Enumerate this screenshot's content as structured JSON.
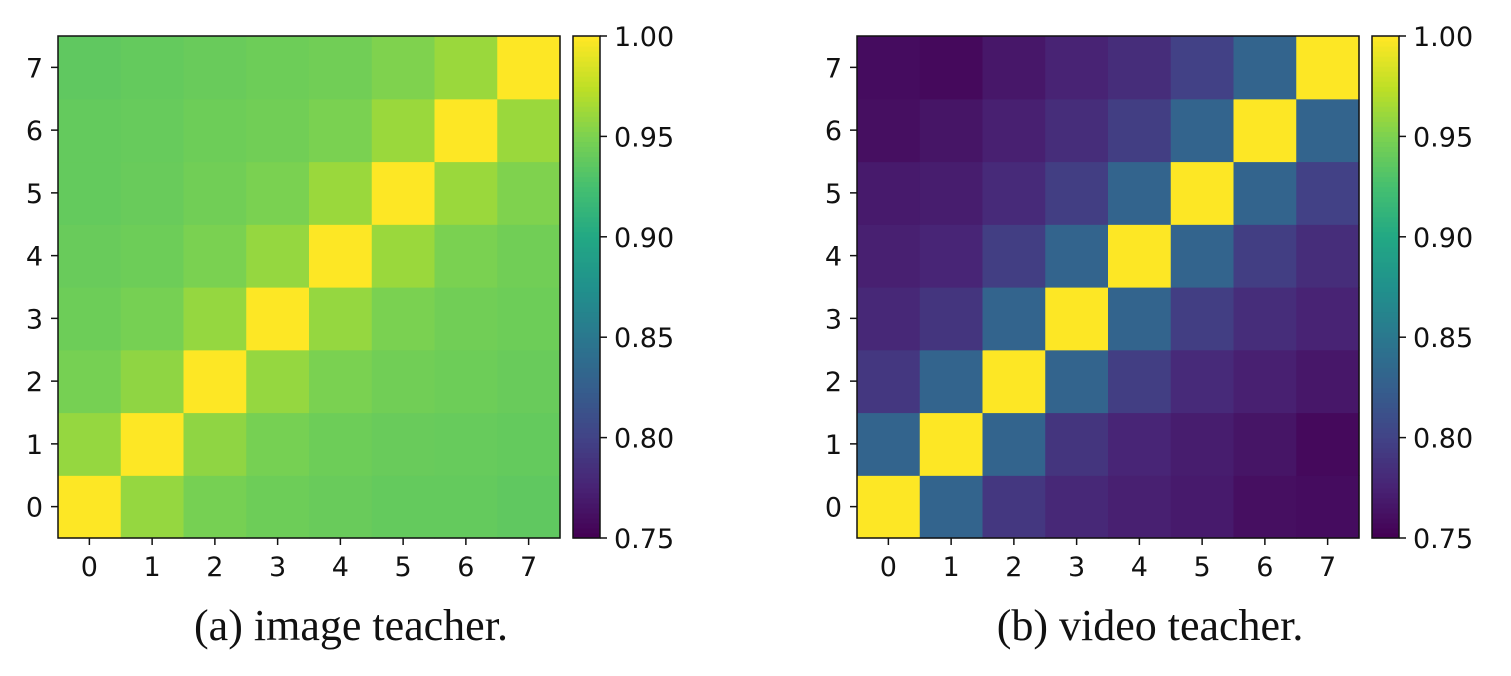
{
  "chart_data": [
    {
      "type": "heatmap",
      "caption": "(a) image teacher.",
      "x_ticks": [
        "0",
        "1",
        "2",
        "3",
        "4",
        "5",
        "6",
        "7"
      ],
      "y_ticks": [
        "0",
        "1",
        "2",
        "3",
        "4",
        "5",
        "6",
        "7"
      ],
      "colorbar": {
        "min": 0.75,
        "max": 1.0,
        "ticks": [
          "0.75",
          "0.80",
          "0.85",
          "0.90",
          "0.95",
          "1.00"
        ]
      },
      "matrix": [
        [
          1.0,
          0.96,
          0.948,
          0.944,
          0.942,
          0.94,
          0.94,
          0.938
        ],
        [
          0.96,
          1.0,
          0.958,
          0.948,
          0.944,
          0.942,
          0.941,
          0.94
        ],
        [
          0.948,
          0.958,
          1.0,
          0.96,
          0.95,
          0.946,
          0.944,
          0.942
        ],
        [
          0.944,
          0.948,
          0.96,
          1.0,
          0.96,
          0.95,
          0.946,
          0.944
        ],
        [
          0.942,
          0.944,
          0.95,
          0.96,
          1.0,
          0.962,
          0.95,
          0.946
        ],
        [
          0.94,
          0.942,
          0.946,
          0.95,
          0.962,
          1.0,
          0.962,
          0.952
        ],
        [
          0.94,
          0.941,
          0.944,
          0.946,
          0.95,
          0.962,
          1.0,
          0.962
        ],
        [
          0.938,
          0.94,
          0.942,
          0.944,
          0.946,
          0.952,
          0.962,
          1.0
        ]
      ]
    },
    {
      "type": "heatmap",
      "caption": "(b) video teacher.",
      "x_ticks": [
        "0",
        "1",
        "2",
        "3",
        "4",
        "5",
        "6",
        "7"
      ],
      "y_ticks": [
        "0",
        "1",
        "2",
        "3",
        "4",
        "5",
        "6",
        "7"
      ],
      "colorbar": {
        "min": 0.75,
        "max": 1.0,
        "ticks": [
          "0.75",
          "0.80",
          "0.85",
          "0.90",
          "0.95",
          "1.00"
        ]
      },
      "matrix": [
        [
          1.0,
          0.83,
          0.79,
          0.778,
          0.772,
          0.768,
          0.76,
          0.758
        ],
        [
          0.83,
          1.0,
          0.83,
          0.788,
          0.776,
          0.77,
          0.764,
          0.756
        ],
        [
          0.79,
          0.83,
          1.0,
          0.83,
          0.795,
          0.78,
          0.772,
          0.766
        ],
        [
          0.778,
          0.788,
          0.83,
          1.0,
          0.83,
          0.795,
          0.782,
          0.774
        ],
        [
          0.772,
          0.776,
          0.795,
          0.83,
          1.0,
          0.83,
          0.795,
          0.782
        ],
        [
          0.768,
          0.77,
          0.78,
          0.795,
          0.83,
          1.0,
          0.83,
          0.798
        ],
        [
          0.76,
          0.764,
          0.772,
          0.782,
          0.795,
          0.83,
          1.0,
          0.83
        ],
        [
          0.758,
          0.756,
          0.766,
          0.774,
          0.782,
          0.798,
          0.83,
          1.0
        ]
      ]
    }
  ]
}
